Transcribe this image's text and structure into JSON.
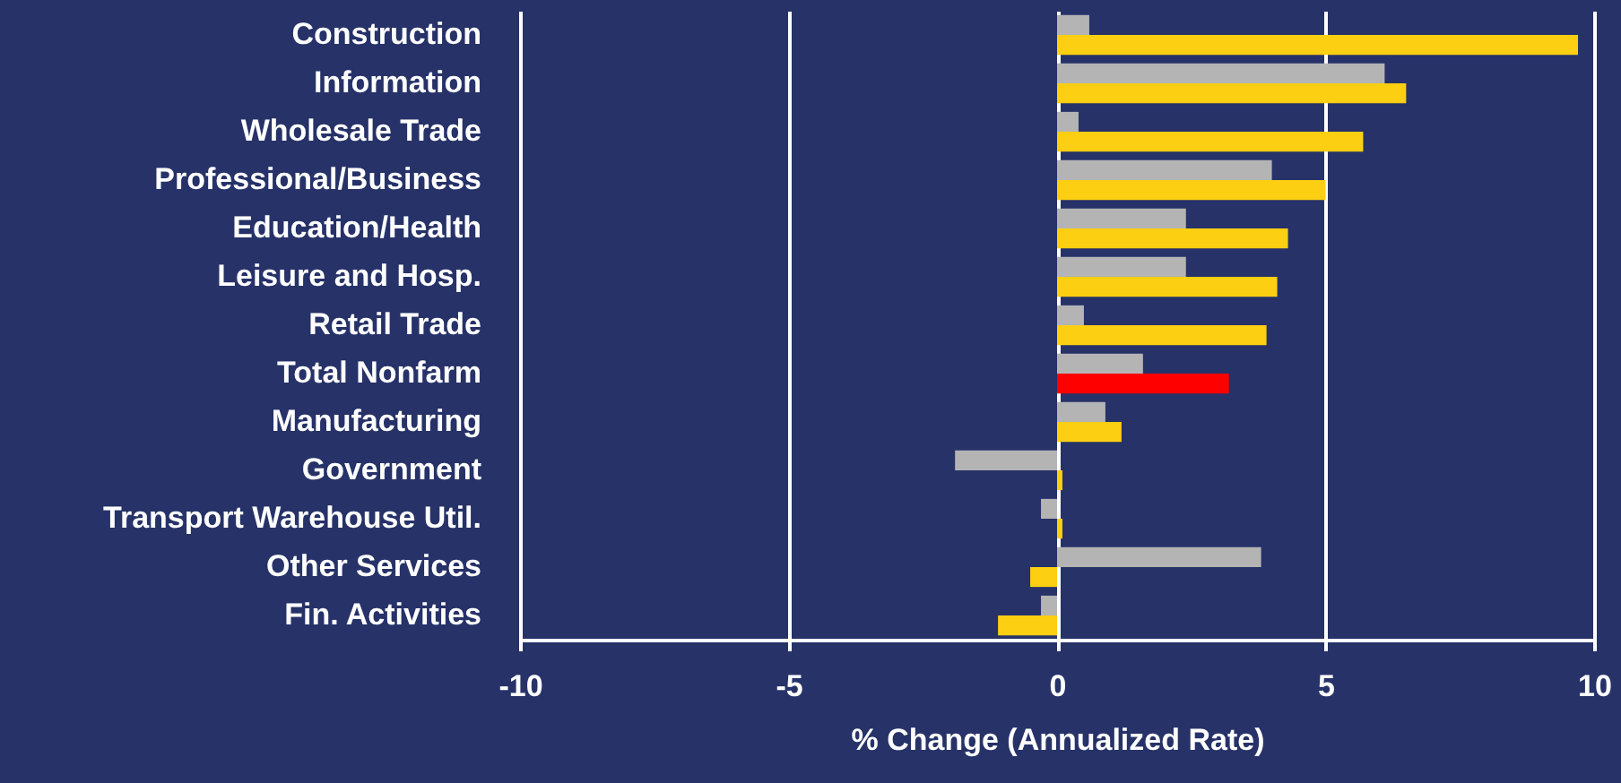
{
  "chart_data": {
    "type": "bar",
    "orientation": "horizontal",
    "xlabel": "% Change (Annualized Rate)",
    "categories": [
      "Construction",
      "Information",
      "Wholesale Trade",
      "Professional/Business",
      "Education/Health",
      "Leisure and Hosp.",
      "Retail Trade",
      "Total Nonfarm",
      "Manufacturing",
      "Government",
      "Transport Warehouse Util.",
      "Other Services",
      "Fin. Activities"
    ],
    "series": [
      {
        "color": "#b4b4b4",
        "values": [
          0.6,
          6.1,
          0.4,
          4.0,
          2.4,
          2.4,
          0.5,
          1.6,
          0.9,
          -1.9,
          -0.3,
          3.8,
          -0.3
        ]
      },
      {
        "colors": [
          "#fccf12",
          "#fccf12",
          "#fccf12",
          "#fccf12",
          "#fccf12",
          "#fccf12",
          "#fccf12",
          "#ff0000",
          "#fccf12",
          "#fccf12",
          "#fccf12",
          "#fccf12",
          "#fccf12"
        ],
        "values": [
          9.7,
          6.5,
          5.7,
          5.0,
          4.3,
          4.1,
          3.9,
          3.2,
          1.2,
          0.1,
          0.1,
          -0.5,
          -1.1
        ]
      }
    ],
    "xlim": [
      -10,
      10
    ],
    "xticks": [
      -10,
      -5,
      0,
      5,
      10
    ],
    "grid": "x"
  }
}
